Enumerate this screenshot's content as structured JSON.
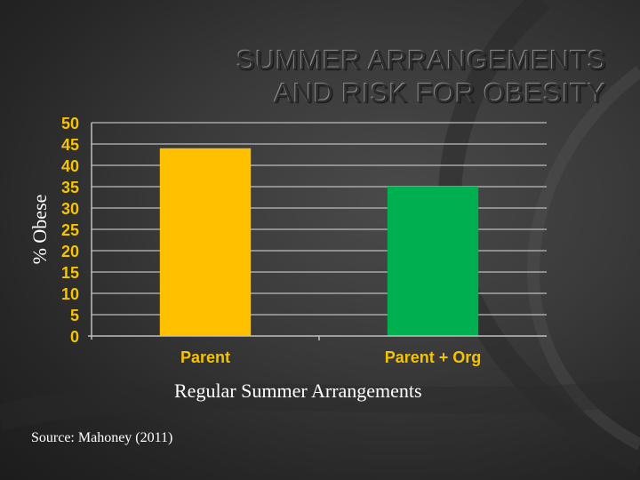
{
  "slide": {
    "title_line1": "SUMMER ARRANGEMENTS",
    "title_line2": "AND RISK FOR OBESITY",
    "source": "Source: Mahoney (2011)"
  },
  "chart_data": {
    "type": "bar",
    "title": "",
    "xlabel": "Regular Summer Arrangements",
    "ylabel": "% Obese",
    "categories": [
      "Parent",
      "Parent + Org"
    ],
    "values": [
      44,
      35
    ],
    "bar_colors": [
      "#ffc000",
      "#00b050"
    ],
    "ylim": [
      0,
      50
    ],
    "yticks": [
      0,
      5,
      10,
      15,
      20,
      25,
      30,
      35,
      40,
      45,
      50
    ],
    "grid": true,
    "legend": "none",
    "tick_label_color": "#f5c300",
    "axis_color": "#bfbfbf",
    "gridline_color": "#bdbdbd"
  }
}
